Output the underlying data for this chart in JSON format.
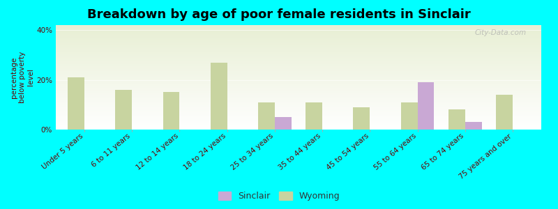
{
  "title": "Breakdown by age of poor female residents in Sinclair",
  "categories": [
    "Under 5 years",
    "6 to 11 years",
    "12 to 14 years",
    "18 to 24 years",
    "25 to 34 years",
    "35 to 44 years",
    "45 to 54 years",
    "55 to 64 years",
    "65 to 74 years",
    "75 years and over"
  ],
  "sinclair_values": [
    0,
    0,
    0,
    0,
    5.0,
    0,
    0,
    19.0,
    3.0,
    0
  ],
  "wyoming_values": [
    21.0,
    16.0,
    15.0,
    27.0,
    11.0,
    11.0,
    9.0,
    11.0,
    8.0,
    14.0
  ],
  "sinclair_color": "#c9a8d4",
  "wyoming_color": "#c8d4a0",
  "background_color": "#00ffff",
  "plot_bg_top": "#e8efd4",
  "plot_bg_bottom": "#ffffff",
  "ylabel": "percentage\nbelow poverty\nlevel",
  "ylim": [
    0,
    42
  ],
  "yticks": [
    0,
    20,
    40
  ],
  "ytick_labels": [
    "0%",
    "20%",
    "40%"
  ],
  "title_fontsize": 13,
  "tick_label_fontsize": 7.5,
  "ylabel_fontsize": 7.5,
  "bar_width": 0.35,
  "watermark": "City-Data.com",
  "legend_sinclair": "Sinclair",
  "legend_wyoming": "Wyoming"
}
